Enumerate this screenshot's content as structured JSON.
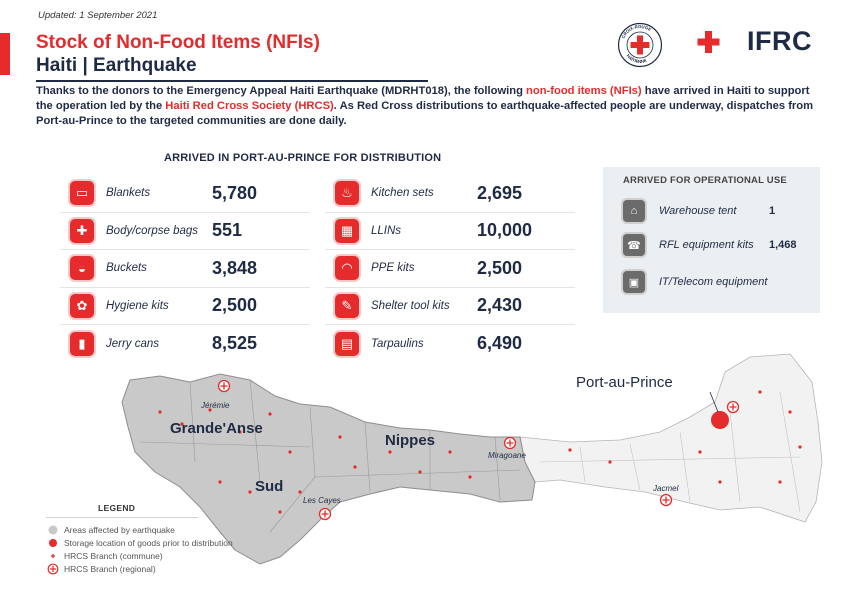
{
  "header": {
    "updated": "Updated: 1 September 2021",
    "title": "Stock of Non-Food Items (NFIs)",
    "subtitle": "Haiti | Earthquake",
    "seal_text": "CROIX-ROUGE HAÏTIENNE",
    "logo_text": "IFRC"
  },
  "intro": {
    "part1": "Thanks to the donors to the Emergency Appeal Haiti Earthquake (MDRHT018), the following ",
    "highlight1": "non-food items (NFIs)",
    "part2": " have arrived in Haiti to support the operation led by the ",
    "highlight2": "Haiti Red Cross Society (HRCS)",
    "part3": ". As Red Cross distributions to earthquake-affected people are underway, dispatches from Port-au-Prince to the targeted communities are done daily."
  },
  "arrived_section": {
    "title": "ARRIVED IN PORT-AU-PRINCE FOR DISTRIBUTION",
    "left_items": [
      {
        "label": "Blankets",
        "value": "5,780",
        "icon": "blanket-icon",
        "glyph": "▭"
      },
      {
        "label": "Body/corpse bags",
        "value": "551",
        "icon": "bag-icon",
        "glyph": "✚"
      },
      {
        "label": "Buckets",
        "value": "3,848",
        "icon": "bucket-icon",
        "glyph": "◒"
      },
      {
        "label": "Hygiene kits",
        "value": "2,500",
        "icon": "hygiene-icon",
        "glyph": "✿"
      },
      {
        "label": "Jerry cans",
        "value": "8,525",
        "icon": "jerrycan-icon",
        "glyph": "▮"
      }
    ],
    "right_items": [
      {
        "label": "Kitchen sets",
        "value": "2,695",
        "icon": "kitchen-icon",
        "glyph": "♨"
      },
      {
        "label": "LLINs",
        "value": "10,000",
        "icon": "net-icon",
        "glyph": "▦"
      },
      {
        "label": "PPE kits",
        "value": "2,500",
        "icon": "mask-icon",
        "glyph": "◠"
      },
      {
        "label": "Shelter tool kits",
        "value": "2,430",
        "icon": "wrench-icon",
        "glyph": "✎"
      },
      {
        "label": "Tarpaulins",
        "value": "6,490",
        "icon": "tarp-icon",
        "glyph": "▤"
      }
    ]
  },
  "operational_section": {
    "title": "ARRIVED FOR OPERATIONAL USE",
    "items": [
      {
        "label": "Warehouse tent",
        "value": "1",
        "icon": "tent-icon",
        "glyph": "⌂"
      },
      {
        "label": "RFL equipment kits",
        "value": "1,468",
        "icon": "phone-icon",
        "glyph": "☎"
      },
      {
        "label": "IT/Telecom equipment",
        "value": "",
        "icon": "computer-icon",
        "glyph": "▣"
      }
    ]
  },
  "map": {
    "regions": [
      "Grande'Anse",
      "Nippes",
      "Sud"
    ],
    "capital": "Port-au-Prince",
    "cities": [
      "Jérémie",
      "Miragoane",
      "Les Cayes",
      "Jacmel"
    ],
    "colors": {
      "affected": "#c9c9c9",
      "unaffected": "#f2f2f2",
      "accent": "#e52b2b"
    }
  },
  "legend": {
    "title": "LEGEND",
    "items": [
      {
        "label": "Areas affected by earthquake",
        "symbol": "grey-dot"
      },
      {
        "label": "Storage location of goods prior to distribution",
        "symbol": "red-dot"
      },
      {
        "label": "HRCS Branch (commune)",
        "symbol": "small-cross"
      },
      {
        "label": "HRCS Branch (regional)",
        "symbol": "circle-cross"
      }
    ]
  }
}
